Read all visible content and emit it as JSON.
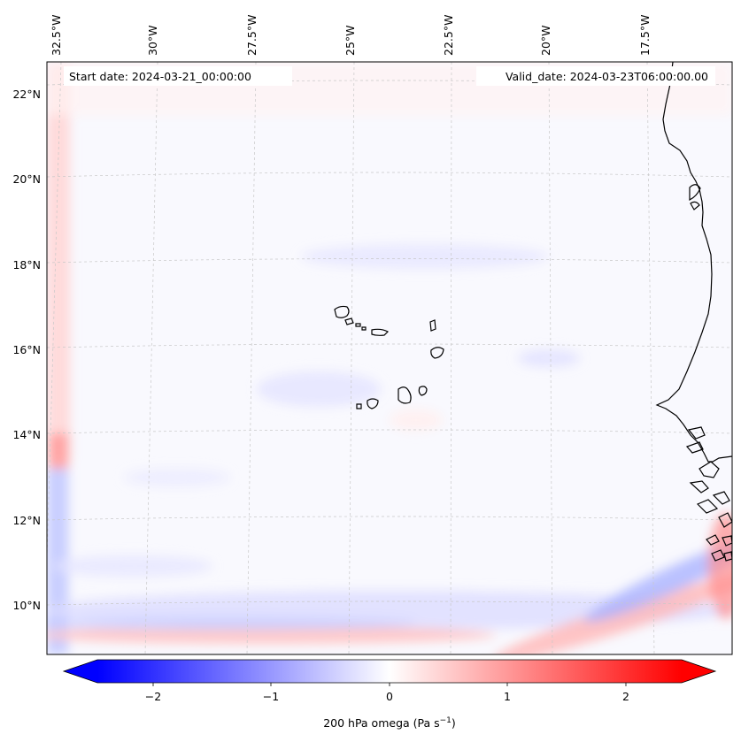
{
  "header": {
    "start_date": "Start date: 2024-03-21_00:00:00",
    "valid_date": "Valid_date: 2024-03-23T06:00:00.00"
  },
  "axes": {
    "lon_labels": [
      "32.5°W",
      "30°W",
      "27.5°W",
      "25°W",
      "22.5°W",
      "20°W",
      "17.5°W"
    ],
    "lat_labels": [
      "22°N",
      "20°N",
      "18°N",
      "16°N",
      "14°N",
      "12°N",
      "10°N"
    ]
  },
  "colorbar": {
    "ticks": [
      "−2",
      "−1",
      "0",
      "1",
      "2"
    ],
    "label": "200 hPa omega (Pa s",
    "label_exponent": "−1",
    "label_close": ")",
    "colors": {
      "min": "#0000ff",
      "mid": "#ffffff",
      "max": "#ff0000"
    }
  },
  "colors": {
    "coast": "#000000",
    "grid": "#c8c8c8"
  }
}
